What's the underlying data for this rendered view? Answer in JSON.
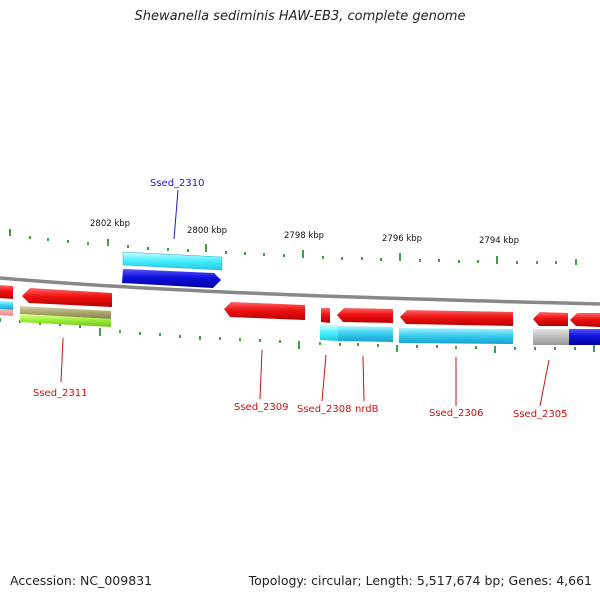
{
  "title": "Shewanella sediminis HAW-EB3, complete genome",
  "footer": {
    "accession": "Accession: NC_009831",
    "summary": "Topology: circular; Length: 5,517,674 bp; Genes: 4,661"
  },
  "scale_labels": [
    "2802 kbp",
    "2800 kbp",
    "2798 kbp",
    "2796 kbp",
    "2794 kbp"
  ],
  "gene_labels": {
    "forward": [
      "Ssed_2310"
    ],
    "reverse": [
      "Ssed_2311",
      "Ssed_2309",
      "Ssed_2308",
      "nrdB",
      "Ssed_2306",
      "Ssed_2305"
    ]
  },
  "colors": {
    "forward_label": "#1a1acc",
    "reverse_label": "#cc1111",
    "cds_red": "#ee1111",
    "cds_blue": "#1010dd",
    "cog_cyan": "#33ccee",
    "cog_light_cyan": "#44eeff",
    "cog_olive": "#aaa66a",
    "cog_lime": "#99ee33",
    "cog_grey": "#bbbbbb",
    "backbone": "#888888",
    "tick_green": "#118811"
  }
}
